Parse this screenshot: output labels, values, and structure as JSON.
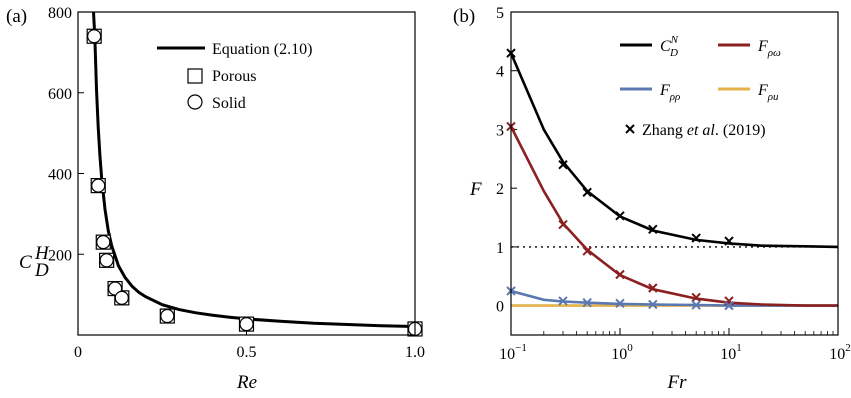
{
  "chart_data": [
    {
      "panel_label": "(a)",
      "type": "line+scatter",
      "xlabel": "Re",
      "ylabel": "C",
      "ylabel_sub": "D",
      "ylabel_sup": "H",
      "xlim": [
        0,
        1.0
      ],
      "ylim": [
        0,
        800
      ],
      "xticks": [
        0,
        0.5,
        1.0
      ],
      "xtick_labels": [
        "0",
        "0.5",
        "1.0"
      ],
      "yticks": [
        200,
        400,
        600,
        800
      ],
      "ytick_labels": [
        "200",
        "400",
        "600",
        "800"
      ],
      "legend_position": "top-right",
      "series": [
        {
          "name": "Equation (2.10)",
          "kind": "line",
          "color": "#000000",
          "x": [
            0.046,
            0.05,
            0.055,
            0.06,
            0.065,
            0.07,
            0.08,
            0.09,
            0.1,
            0.12,
            0.14,
            0.16,
            0.18,
            0.2,
            0.25,
            0.3,
            0.35,
            0.4,
            0.45,
            0.5,
            0.6,
            0.7,
            0.8,
            0.9,
            1.0
          ],
          "y": [
            800,
            740,
            608,
            515,
            445,
            390,
            311,
            258,
            221,
            172,
            142,
            121,
            106,
            95,
            75,
            63,
            55,
            49,
            44,
            40,
            34,
            29,
            26,
            23,
            21
          ]
        },
        {
          "name": "Porous",
          "kind": "marker-square",
          "x": [
            0.048,
            0.06,
            0.075,
            0.085,
            0.11,
            0.13,
            0.265,
            0.5,
            1.0
          ],
          "y": [
            740,
            370,
            230,
            185,
            115,
            92,
            47,
            27,
            15
          ]
        },
        {
          "name": "Solid",
          "kind": "marker-circle",
          "x": [
            0.048,
            0.06,
            0.075,
            0.085,
            0.11,
            0.13,
            0.265,
            0.5,
            1.0
          ],
          "y": [
            740,
            370,
            230,
            185,
            115,
            92,
            47,
            27,
            15
          ]
        }
      ]
    },
    {
      "panel_label": "(b)",
      "type": "line+scatter",
      "xlabel": "Fr",
      "ylabel": "F",
      "xscale": "log",
      "xlim": [
        0.1,
        100
      ],
      "ylim": [
        -0.5,
        5
      ],
      "xtick_exponents": [
        "−1",
        "0",
        "1",
        "2"
      ],
      "xtick_base": "10",
      "yticks": [
        0,
        1,
        2,
        3,
        4,
        5
      ],
      "ytick_labels": [
        "0",
        "1",
        "2",
        "3",
        "4",
        "5"
      ],
      "reference_line": {
        "y": 1,
        "style": "dotted"
      },
      "legend_position": "top",
      "series": [
        {
          "name": "C",
          "name_sub": "D",
          "name_sup": "N",
          "kind": "line",
          "color": "#000000",
          "x": [
            0.1,
            0.2,
            0.3,
            0.5,
            1,
            2,
            5,
            10,
            20,
            50,
            100
          ],
          "y": [
            4.3,
            3.0,
            2.45,
            1.95,
            1.52,
            1.28,
            1.12,
            1.06,
            1.02,
            1.01,
            1.0
          ]
        },
        {
          "name": "F",
          "name_sub": "ρω",
          "kind": "line",
          "color": "#8b2020",
          "x": [
            0.1,
            0.2,
            0.3,
            0.5,
            1,
            2,
            5,
            10,
            20,
            50,
            100
          ],
          "y": [
            3.05,
            1.95,
            1.4,
            0.95,
            0.52,
            0.28,
            0.12,
            0.05,
            0.02,
            0.0,
            0.0
          ]
        },
        {
          "name": "F",
          "name_sub": "ρρ",
          "kind": "line",
          "color": "#5b78b2",
          "x": [
            0.1,
            0.2,
            0.3,
            0.5,
            1,
            2,
            5,
            10,
            20,
            50,
            100
          ],
          "y": [
            0.25,
            0.1,
            0.07,
            0.05,
            0.03,
            0.02,
            0.01,
            0.0,
            0.0,
            0.0,
            0.0
          ]
        },
        {
          "name": "F",
          "name_sub": "ρu",
          "kind": "line",
          "color": "#e3b24a",
          "x": [
            0.1,
            100
          ],
          "y": [
            0.0,
            0.0
          ]
        },
        {
          "name_parts": [
            "Zhang ",
            "et al",
            ". (2019)"
          ],
          "kind": "marker-x",
          "color": "#000000",
          "x": [
            0.1,
            0.3,
            0.5,
            1,
            2,
            5,
            10
          ],
          "y": [
            4.3,
            2.4,
            1.93,
            1.53,
            1.3,
            1.15,
            1.1
          ]
        },
        {
          "kind": "marker-x",
          "color": "#8b2020",
          "x": [
            0.1,
            0.3,
            0.5,
            1,
            2,
            5,
            10
          ],
          "y": [
            3.05,
            1.38,
            0.93,
            0.53,
            0.3,
            0.14,
            0.08
          ]
        },
        {
          "kind": "marker-x",
          "color": "#5b78b2",
          "x": [
            0.1,
            0.3,
            0.5,
            1,
            2,
            5,
            10
          ],
          "y": [
            0.25,
            0.08,
            0.05,
            0.04,
            0.02,
            0.01,
            0.0
          ]
        }
      ]
    }
  ]
}
